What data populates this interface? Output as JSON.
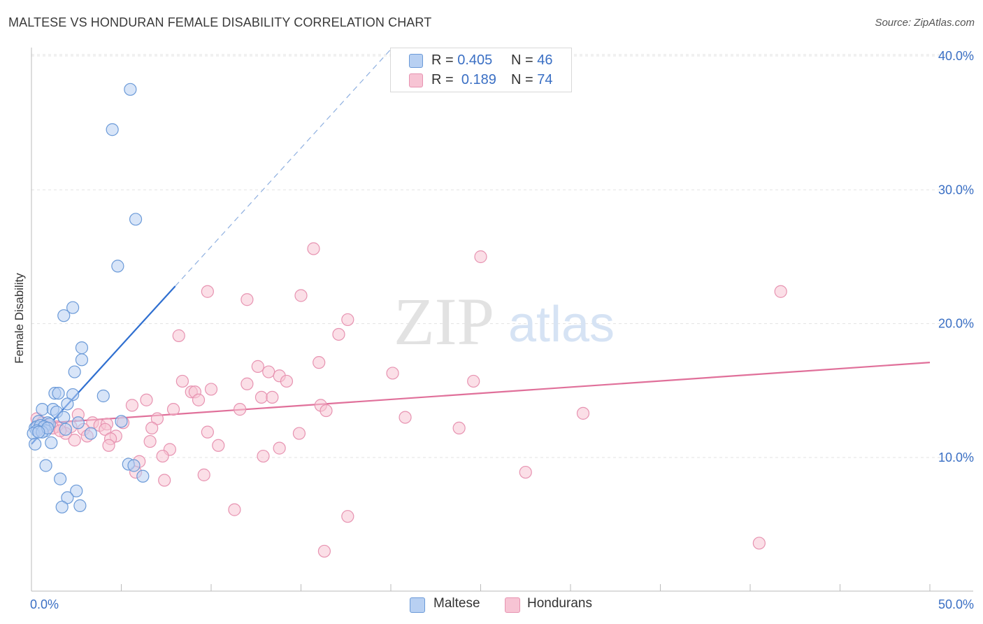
{
  "title": "MALTESE VS HONDURAN FEMALE DISABILITY CORRELATION CHART",
  "source": "Source: ZipAtlas.com",
  "watermark": {
    "zip": "ZIP",
    "atlas": "atlas"
  },
  "colors": {
    "maltese_fill": "#b8d0f2",
    "maltese_stroke": "#6b9ad8",
    "maltese_line": "#2f6fd0",
    "hondurans_fill": "#f7c4d4",
    "hondurans_stroke": "#e793b1",
    "hondurans_line": "#e0709a",
    "axis_text": "#3a6fc4",
    "grid": "#e3e3e3"
  },
  "legend": {
    "rows": [
      {
        "r_label": "R =",
        "r_value": "0.405",
        "n_label": "N =",
        "n_value": "46"
      },
      {
        "r_label": "R =",
        "r_value": "0.189",
        "n_label": "N =",
        "n_value": "74"
      }
    ],
    "series_names": [
      "Maltese",
      "Hondurans"
    ]
  },
  "chart_data": {
    "type": "scatter",
    "title": "MALTESE VS HONDURAN FEMALE DISABILITY CORRELATION CHART",
    "xlabel": "",
    "ylabel": "Female Disability",
    "xlim": [
      0,
      50
    ],
    "ylim": [
      0,
      42
    ],
    "x_tick_labels": {
      "min": "0.0%",
      "max": "50.0%"
    },
    "y_ticks": [
      {
        "value": 10,
        "label": "10.0%"
      },
      {
        "value": 20,
        "label": "20.0%"
      },
      {
        "value": 30,
        "label": "30.0%"
      },
      {
        "value": 40,
        "label": "40.0%"
      }
    ],
    "series": [
      {
        "name": "Maltese",
        "r": 0.405,
        "n": 46,
        "trend": {
          "x0": 0.0,
          "y0": 11.0,
          "x1": 8.0,
          "y1": 22.8,
          "dash_x1": 20.0,
          "dash_y1": 40.5
        },
        "points": [
          [
            5.5,
            37.5
          ],
          [
            4.5,
            34.5
          ],
          [
            5.8,
            27.8
          ],
          [
            4.8,
            24.3
          ],
          [
            2.3,
            21.2
          ],
          [
            1.8,
            20.6
          ],
          [
            2.8,
            18.2
          ],
          [
            2.8,
            17.3
          ],
          [
            2.4,
            16.4
          ],
          [
            1.3,
            14.8
          ],
          [
            1.5,
            14.8
          ],
          [
            2.3,
            14.7
          ],
          [
            4.0,
            14.6
          ],
          [
            2.0,
            14.0
          ],
          [
            0.6,
            13.6
          ],
          [
            1.2,
            13.6
          ],
          [
            1.4,
            13.4
          ],
          [
            1.8,
            13.0
          ],
          [
            0.4,
            12.7
          ],
          [
            0.9,
            12.6
          ],
          [
            1.0,
            12.5
          ],
          [
            2.6,
            12.6
          ],
          [
            5.0,
            12.7
          ],
          [
            0.2,
            12.2
          ],
          [
            0.3,
            12.3
          ],
          [
            0.5,
            12.4
          ],
          [
            0.7,
            12.3
          ],
          [
            0.8,
            12.0
          ],
          [
            0.3,
            12.0
          ],
          [
            0.1,
            11.8
          ],
          [
            0.6,
            11.9
          ],
          [
            1.9,
            12.1
          ],
          [
            3.3,
            11.8
          ],
          [
            0.2,
            11.0
          ],
          [
            1.1,
            11.1
          ],
          [
            0.8,
            9.4
          ],
          [
            5.4,
            9.5
          ],
          [
            5.7,
            9.4
          ],
          [
            6.2,
            8.6
          ],
          [
            1.6,
            8.4
          ],
          [
            2.5,
            7.5
          ],
          [
            2.0,
            7.0
          ],
          [
            1.7,
            6.3
          ],
          [
            2.7,
            6.4
          ],
          [
            0.9,
            12.2
          ],
          [
            0.4,
            11.9
          ]
        ]
      },
      {
        "name": "Hondurans",
        "r": 0.189,
        "n": 74,
        "trend": {
          "x0": 0.0,
          "y0": 12.5,
          "x1": 50.0,
          "y1": 17.1
        },
        "points": [
          [
            15.7,
            25.6
          ],
          [
            25.0,
            25.0
          ],
          [
            9.8,
            22.4
          ],
          [
            15.0,
            22.1
          ],
          [
            12.0,
            21.8
          ],
          [
            41.7,
            22.4
          ],
          [
            17.6,
            20.3
          ],
          [
            8.2,
            19.1
          ],
          [
            17.1,
            19.2
          ],
          [
            16.0,
            17.1
          ],
          [
            12.6,
            16.8
          ],
          [
            13.2,
            16.4
          ],
          [
            13.8,
            16.1
          ],
          [
            20.1,
            16.3
          ],
          [
            8.4,
            15.7
          ],
          [
            14.2,
            15.7
          ],
          [
            12.0,
            15.5
          ],
          [
            24.6,
            15.7
          ],
          [
            10.0,
            15.1
          ],
          [
            8.9,
            14.9
          ],
          [
            9.1,
            14.9
          ],
          [
            6.4,
            14.3
          ],
          [
            9.3,
            14.3
          ],
          [
            12.8,
            14.5
          ],
          [
            13.4,
            14.5
          ],
          [
            5.6,
            13.9
          ],
          [
            16.1,
            13.9
          ],
          [
            7.9,
            13.6
          ],
          [
            11.6,
            13.6
          ],
          [
            16.4,
            13.5
          ],
          [
            30.7,
            13.3
          ],
          [
            2.6,
            13.2
          ],
          [
            7.0,
            12.9
          ],
          [
            20.8,
            13.0
          ],
          [
            5.1,
            12.6
          ],
          [
            3.4,
            12.6
          ],
          [
            3.8,
            12.4
          ],
          [
            4.2,
            12.5
          ],
          [
            2.2,
            12.3
          ],
          [
            2.9,
            12.1
          ],
          [
            4.1,
            12.1
          ],
          [
            23.8,
            12.2
          ],
          [
            6.7,
            12.2
          ],
          [
            1.4,
            12.3
          ],
          [
            9.8,
            11.9
          ],
          [
            14.9,
            11.8
          ],
          [
            1.9,
            11.8
          ],
          [
            3.1,
            11.6
          ],
          [
            4.7,
            11.6
          ],
          [
            4.4,
            11.4
          ],
          [
            2.4,
            11.3
          ],
          [
            6.6,
            11.2
          ],
          [
            4.3,
            10.9
          ],
          [
            10.4,
            10.9
          ],
          [
            7.7,
            10.6
          ],
          [
            13.8,
            10.7
          ],
          [
            7.3,
            10.1
          ],
          [
            12.9,
            10.1
          ],
          [
            6.0,
            9.7
          ],
          [
            5.8,
            8.9
          ],
          [
            27.5,
            8.9
          ],
          [
            9.6,
            8.7
          ],
          [
            7.4,
            8.3
          ],
          [
            11.3,
            6.1
          ],
          [
            17.6,
            5.6
          ],
          [
            40.5,
            3.6
          ],
          [
            16.3,
            3.0
          ],
          [
            0.3,
            12.9
          ],
          [
            0.6,
            12.6
          ],
          [
            0.9,
            12.4
          ],
          [
            1.2,
            12.2
          ],
          [
            0.4,
            12.1
          ],
          [
            0.7,
            12.3
          ],
          [
            1.6,
            12.0
          ]
        ]
      }
    ]
  }
}
